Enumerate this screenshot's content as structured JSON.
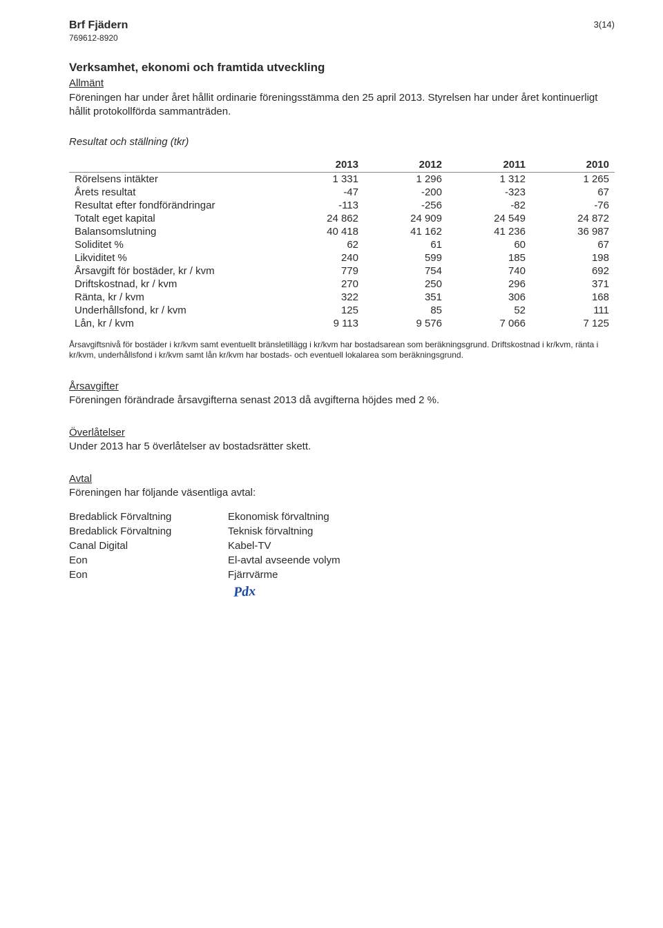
{
  "header": {
    "org_name": "Brf Fjädern",
    "org_id": "769612-8920",
    "page_number": "3(14)"
  },
  "title": "Verksamhet, ekonomi och framtida utveckling",
  "allmant": {
    "heading": "Allmänt",
    "text": "Föreningen har under året hållit ordinarie föreningsstämma den 25 april 2013. Styrelsen har under året kontinuerligt hållit protokollförda sammanträden."
  },
  "resultat_heading": "Resultat och ställning (tkr)",
  "table": {
    "columns": [
      "2013",
      "2012",
      "2011",
      "2010"
    ],
    "rows": [
      {
        "label": "Rörelsens intäkter",
        "values": [
          "1 331",
          "1 296",
          "1 312",
          "1 265"
        ]
      },
      {
        "label": "Årets resultat",
        "values": [
          "-47",
          "-200",
          "-323",
          "67"
        ]
      },
      {
        "label": "Resultat efter fondförändringar",
        "values": [
          "-113",
          "-256",
          "-82",
          "-76"
        ]
      },
      {
        "label": "Totalt eget kapital",
        "values": [
          "24 862",
          "24 909",
          "24 549",
          "24 872"
        ]
      },
      {
        "label": "Balansomslutning",
        "values": [
          "40 418",
          "41 162",
          "41 236",
          "36 987"
        ]
      },
      {
        "label": "Soliditet %",
        "values": [
          "62",
          "61",
          "60",
          "67"
        ]
      },
      {
        "label": "Likviditet %",
        "values": [
          "240",
          "599",
          "185",
          "198"
        ]
      },
      {
        "label": "Årsavgift för bostäder, kr / kvm",
        "values": [
          "779",
          "754",
          "740",
          "692"
        ]
      },
      {
        "label": "Driftskostnad, kr / kvm",
        "values": [
          "270",
          "250",
          "296",
          "371"
        ]
      },
      {
        "label": "Ränta, kr / kvm",
        "values": [
          "322",
          "351",
          "306",
          "168"
        ]
      },
      {
        "label": "Underhållsfond, kr / kvm",
        "values": [
          "125",
          "85",
          "52",
          "111"
        ]
      },
      {
        "label": "Lån, kr / kvm",
        "values": [
          "9 113",
          "9 576",
          "7 066",
          "7 125"
        ]
      }
    ],
    "col_widths": [
      "290px",
      "110px",
      "110px",
      "110px",
      "110px"
    ],
    "header_border_color": "#888888",
    "font_size_pt": 11
  },
  "footnote": "Årsavgiftsnivå för bostäder i kr/kvm samt eventuellt bränsletillägg i kr/kvm har bostadsarean som beräkningsgrund. Driftskostnad i kr/kvm, ränta i kr/kvm, underhållsfond i kr/kvm samt lån kr/kvm har bostads- och eventuell lokalarea som beräkningsgrund.",
  "arsavgifter": {
    "heading": "Årsavgifter",
    "text": "Föreningen förändrade årsavgifterna senast 2013 då avgifterna höjdes med 2 %."
  },
  "overlatelser": {
    "heading": "Överlåtelser",
    "text": "Under 2013 har 5 överlåtelser av bostadsrätter skett."
  },
  "avtal": {
    "heading": "Avtal",
    "intro": "Föreningen har följande väsentliga avtal:",
    "rows": [
      {
        "left": "Bredablick Förvaltning",
        "right": "Ekonomisk förvaltning"
      },
      {
        "left": "Bredablick Förvaltning",
        "right": "Teknisk förvaltning"
      },
      {
        "left": "Canal Digital",
        "right": "Kabel-TV"
      },
      {
        "left": "Eon",
        "right": "El-avtal avseende volym"
      },
      {
        "left": "Eon",
        "right": "Fjärrvärme"
      }
    ]
  },
  "signature_mark": "Pdx",
  "colors": {
    "text": "#2a2a2a",
    "signature": "#1a4aa8",
    "background": "#ffffff"
  }
}
